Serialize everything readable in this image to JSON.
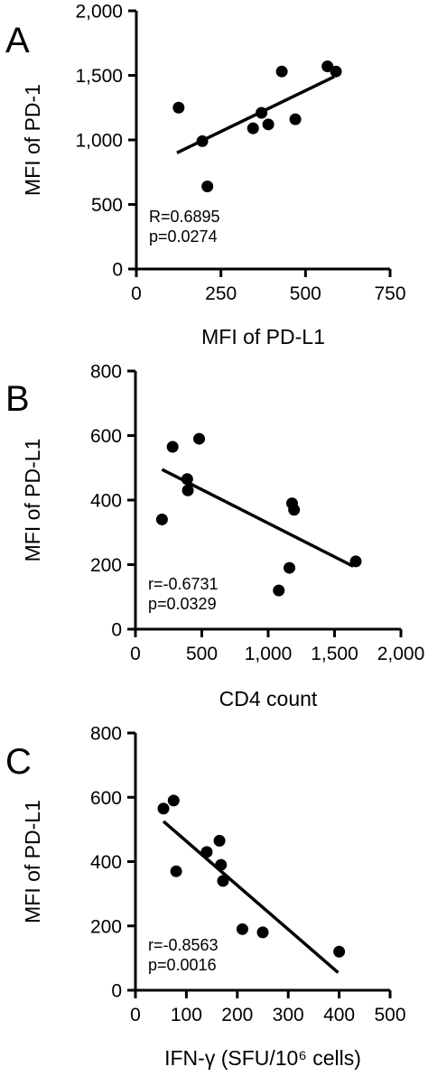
{
  "chart_data": [
    {
      "panel_label": "A",
      "type": "scatter",
      "xlabel": "MFI of PD-L1",
      "ylabel": "MFI of PD-1",
      "xlim": [
        0,
        750
      ],
      "ylim": [
        0,
        2000
      ],
      "xticks": [
        0,
        250,
        500,
        750
      ],
      "xtick_labels": [
        "0",
        "250",
        "500",
        "750"
      ],
      "yticks": [
        0,
        500,
        1000,
        1500,
        2000
      ],
      "ytick_labels": [
        "0",
        "500",
        "1,000",
        "1,500",
        "2,000"
      ],
      "points": [
        {
          "x": 125,
          "y": 1250
        },
        {
          "x": 195,
          "y": 990
        },
        {
          "x": 210,
          "y": 640
        },
        {
          "x": 345,
          "y": 1090
        },
        {
          "x": 370,
          "y": 1210
        },
        {
          "x": 390,
          "y": 1120
        },
        {
          "x": 430,
          "y": 1530
        },
        {
          "x": 470,
          "y": 1160
        },
        {
          "x": 565,
          "y": 1570
        },
        {
          "x": 590,
          "y": 1530
        }
      ],
      "fit_line": {
        "x": [
          120,
          585
        ],
        "y": [
          900,
          1490
        ]
      },
      "annotations": [
        "R=0.6895",
        "p=0.0274"
      ],
      "grid": false
    },
    {
      "panel_label": "B",
      "type": "scatter",
      "xlabel": "CD4 count",
      "ylabel": "MFI of PD-L1",
      "xlim": [
        0,
        2000
      ],
      "ylim": [
        0,
        800
      ],
      "xticks": [
        0,
        500,
        1000,
        1500,
        2000
      ],
      "xtick_labels": [
        "0",
        "500",
        "1,000",
        "1,500",
        "2,000"
      ],
      "yticks": [
        0,
        200,
        400,
        600,
        800
      ],
      "ytick_labels": [
        "0",
        "200",
        "400",
        "600",
        "800"
      ],
      "points": [
        {
          "x": 200,
          "y": 340
        },
        {
          "x": 280,
          "y": 565
        },
        {
          "x": 390,
          "y": 465
        },
        {
          "x": 395,
          "y": 430
        },
        {
          "x": 480,
          "y": 590
        },
        {
          "x": 1080,
          "y": 120
        },
        {
          "x": 1160,
          "y": 190
        },
        {
          "x": 1180,
          "y": 390
        },
        {
          "x": 1195,
          "y": 370
        },
        {
          "x": 1660,
          "y": 210
        }
      ],
      "fit_line": {
        "x": [
          200,
          1640
        ],
        "y": [
          495,
          195
        ]
      },
      "annotations": [
        "r=-0.6731",
        "p=0.0329"
      ],
      "grid": false
    },
    {
      "panel_label": "C",
      "type": "scatter",
      "xlabel": "IFN-γ (SFU/10⁶ cells)",
      "ylabel": "MFI of PD-L1",
      "xlim": [
        0,
        500
      ],
      "ylim": [
        0,
        800
      ],
      "xticks": [
        0,
        100,
        200,
        300,
        400,
        500
      ],
      "xtick_labels": [
        "0",
        "100",
        "200",
        "300",
        "400",
        "500"
      ],
      "yticks": [
        0,
        200,
        400,
        600,
        800
      ],
      "ytick_labels": [
        "0",
        "200",
        "400",
        "600",
        "800"
      ],
      "points": [
        {
          "x": 55,
          "y": 565
        },
        {
          "x": 75,
          "y": 590
        },
        {
          "x": 80,
          "y": 370
        },
        {
          "x": 140,
          "y": 430
        },
        {
          "x": 165,
          "y": 465
        },
        {
          "x": 168,
          "y": 390
        },
        {
          "x": 172,
          "y": 340
        },
        {
          "x": 210,
          "y": 190
        },
        {
          "x": 250,
          "y": 180
        },
        {
          "x": 400,
          "y": 120
        }
      ],
      "fit_line": {
        "x": [
          55,
          398
        ],
        "y": [
          525,
          55
        ]
      },
      "annotations": [
        "r=-0.8563",
        "p=0.0016"
      ],
      "grid": false
    }
  ]
}
